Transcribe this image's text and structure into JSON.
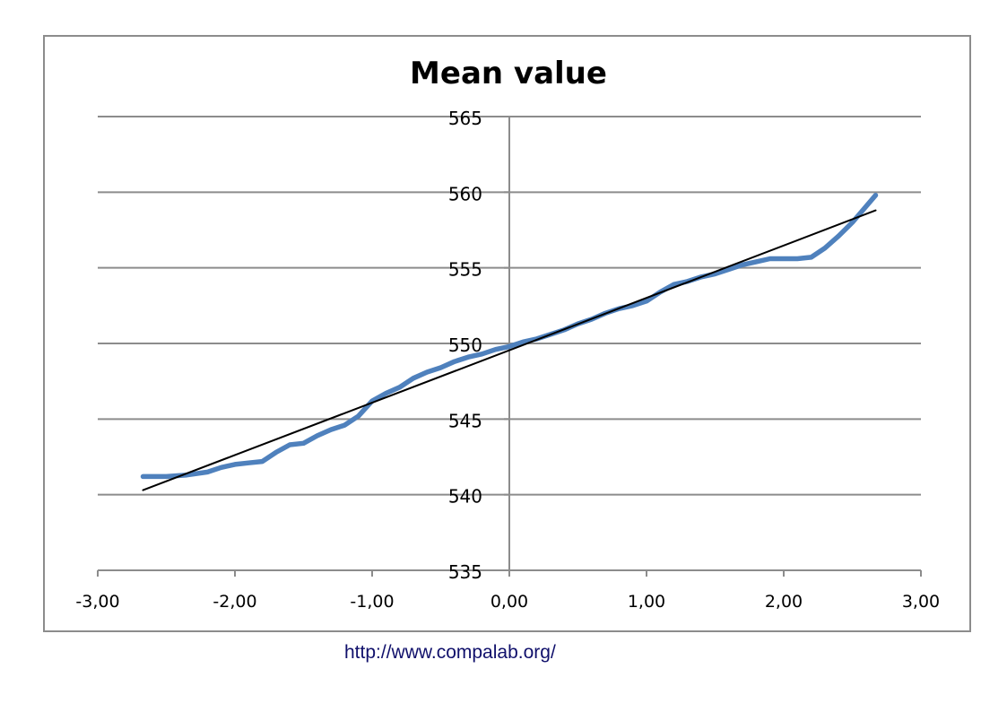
{
  "chart_data": {
    "type": "line",
    "title": "Mean value",
    "xlabel": "",
    "ylabel": "",
    "xlim": [
      -3,
      3
    ],
    "ylim": [
      535,
      565
    ],
    "x_ticks": [
      "-3,00",
      "-2,00",
      "-1,00",
      "0,00",
      "1,00",
      "2,00",
      "3,00"
    ],
    "x_tick_values": [
      -3,
      -2,
      -1,
      0,
      1,
      2,
      3
    ],
    "y_ticks": [
      "535",
      "540",
      "545",
      "550",
      "555",
      "560",
      "565"
    ],
    "y_tick_values": [
      535,
      540,
      545,
      550,
      555,
      560,
      565
    ],
    "grid": "horizontal",
    "legend": "none",
    "series": [
      {
        "color": "#4f81bd",
        "x": [
          -2.67,
          -2.5,
          -2.35,
          -2.2,
          -2.1,
          -2.0,
          -1.9,
          -1.8,
          -1.7,
          -1.6,
          -1.5,
          -1.4,
          -1.3,
          -1.2,
          -1.1,
          -1.0,
          -0.9,
          -0.8,
          -0.7,
          -0.6,
          -0.5,
          -0.4,
          -0.3,
          -0.2,
          -0.1,
          0.0,
          0.1,
          0.2,
          0.3,
          0.4,
          0.5,
          0.6,
          0.7,
          0.8,
          0.9,
          1.0,
          1.1,
          1.2,
          1.3,
          1.4,
          1.5,
          1.6,
          1.7,
          1.8,
          1.9,
          2.0,
          2.1,
          2.2,
          2.3,
          2.4,
          2.5,
          2.67
        ],
        "y": [
          541.2,
          541.2,
          541.3,
          541.5,
          541.8,
          542.0,
          542.1,
          542.2,
          542.8,
          543.3,
          543.4,
          543.9,
          544.3,
          544.6,
          545.2,
          546.2,
          546.7,
          547.1,
          547.7,
          548.1,
          548.4,
          548.8,
          549.1,
          549.3,
          549.6,
          549.8,
          550.1,
          550.3,
          550.6,
          550.9,
          551.3,
          551.6,
          552.0,
          552.3,
          552.5,
          552.8,
          553.4,
          553.9,
          554.1,
          554.4,
          554.6,
          554.9,
          555.2,
          555.4,
          555.6,
          555.6,
          555.6,
          555.7,
          556.3,
          557.1,
          558.0,
          559.8
        ]
      },
      {
        "color": "#000000",
        "x": [
          -2.67,
          2.67
        ],
        "y": [
          540.3,
          558.8
        ]
      }
    ]
  },
  "footer": {
    "link_text": "http://www.compalab.org/"
  }
}
